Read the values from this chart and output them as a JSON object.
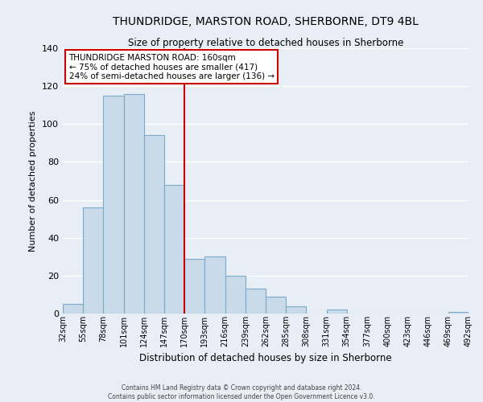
{
  "title": "THUNDRIDGE, MARSTON ROAD, SHERBORNE, DT9 4BL",
  "subtitle": "Size of property relative to detached houses in Sherborne",
  "xlabel": "Distribution of detached houses by size in Sherborne",
  "ylabel": "Number of detached properties",
  "bar_values": [
    5,
    56,
    115,
    116,
    94,
    68,
    29,
    30,
    20,
    13,
    9,
    4,
    0,
    2,
    0,
    0,
    0,
    0,
    0,
    1
  ],
  "bar_labels": [
    "32sqm",
    "55sqm",
    "78sqm",
    "101sqm",
    "124sqm",
    "147sqm",
    "170sqm",
    "193sqm",
    "216sqm",
    "239sqm",
    "262sqm",
    "285sqm",
    "308sqm",
    "331sqm",
    "354sqm",
    "377sqm",
    "400sqm",
    "423sqm",
    "446sqm",
    "469sqm",
    "492sqm"
  ],
  "bar_color": "#c9daea",
  "bar_edge_color": "#7aaac8",
  "vline_color": "#cc0000",
  "ylim": [
    0,
    140
  ],
  "yticks": [
    0,
    20,
    40,
    60,
    80,
    100,
    120,
    140
  ],
  "annotation_title": "THUNDRIDGE MARSTON ROAD: 160sqm",
  "annotation_line1": "← 75% of detached houses are smaller (417)",
  "annotation_line2": "24% of semi-detached houses are larger (136) →",
  "annotation_box_color": "#ffffff",
  "annotation_box_edge_color": "#cc0000",
  "footer1": "Contains HM Land Registry data © Crown copyright and database right 2024.",
  "footer2": "Contains public sector information licensed under the Open Government Licence v3.0.",
  "background_color": "#e8eef5",
  "grid_color": "#ffffff"
}
